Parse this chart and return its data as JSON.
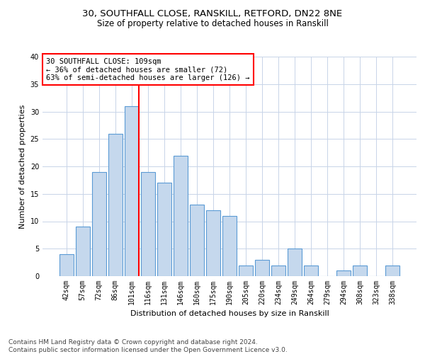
{
  "title1": "30, SOUTHFALL CLOSE, RANSKILL, RETFORD, DN22 8NE",
  "title2": "Size of property relative to detached houses in Ranskill",
  "xlabel": "Distribution of detached houses by size in Ranskill",
  "ylabel": "Number of detached properties",
  "categories": [
    "42sqm",
    "57sqm",
    "72sqm",
    "86sqm",
    "101sqm",
    "116sqm",
    "131sqm",
    "146sqm",
    "160sqm",
    "175sqm",
    "190sqm",
    "205sqm",
    "220sqm",
    "234sqm",
    "249sqm",
    "264sqm",
    "279sqm",
    "294sqm",
    "308sqm",
    "323sqm",
    "338sqm"
  ],
  "values": [
    4,
    9,
    19,
    26,
    31,
    19,
    17,
    22,
    13,
    12,
    11,
    2,
    3,
    2,
    5,
    2,
    0,
    1,
    2,
    0,
    2
  ],
  "bar_color": "#c5d8ed",
  "bar_edge_color": "#5b9bd5",
  "vline_bar_index": 4,
  "vline_color": "red",
  "annotation_text": "30 SOUTHFALL CLOSE: 109sqm\n← 36% of detached houses are smaller (72)\n63% of semi-detached houses are larger (126) →",
  "annotation_box_color": "white",
  "annotation_box_edge_color": "red",
  "ylim": [
    0,
    40
  ],
  "yticks": [
    0,
    5,
    10,
    15,
    20,
    25,
    30,
    35,
    40
  ],
  "footer1": "Contains HM Land Registry data © Crown copyright and database right 2024.",
  "footer2": "Contains public sector information licensed under the Open Government Licence v3.0.",
  "bg_color": "#ffffff",
  "grid_color": "#c8d4e8",
  "title_fontsize": 9.5,
  "subtitle_fontsize": 8.5,
  "axis_label_fontsize": 8,
  "tick_fontsize": 7,
  "annotation_fontsize": 7.5,
  "footer_fontsize": 6.5
}
